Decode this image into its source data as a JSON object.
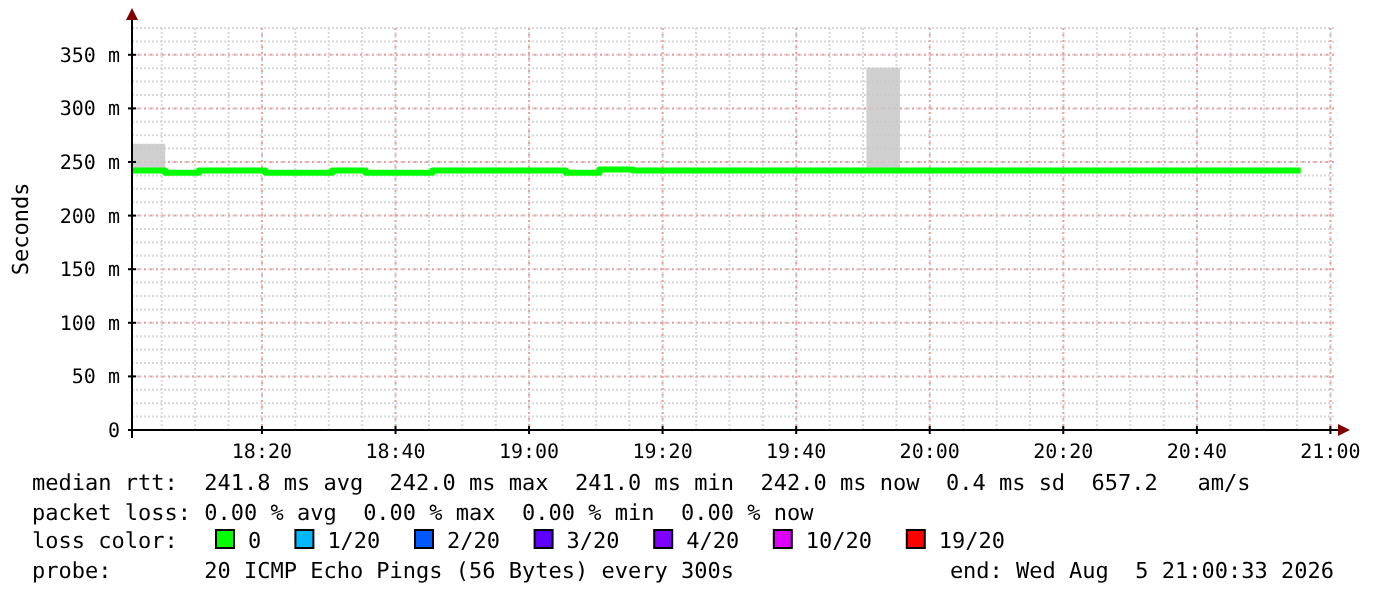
{
  "chart_data": {
    "type": "step",
    "ylabel": "Seconds",
    "legend_title": "loss color:",
    "legend": "bottom",
    "grid": true,
    "xlim": [
      18.009,
      21.009
    ],
    "xticks": [
      {
        "value": 18.3333,
        "label": "18:20"
      },
      {
        "value": 18.6667,
        "label": "18:40"
      },
      {
        "value": 19,
        "label": "19:00"
      },
      {
        "value": 19.3333,
        "label": "19:20"
      },
      {
        "value": 19.6667,
        "label": "19:40"
      },
      {
        "value": 20,
        "label": "20:00"
      },
      {
        "value": 20.3333,
        "label": "20:20"
      },
      {
        "value": 20.6667,
        "label": "20:40"
      },
      {
        "value": 21,
        "label": "21:00"
      }
    ],
    "ylim": [
      0,
      375
    ],
    "yticks": [
      0,
      {
        "value": 50,
        "label": "50 m"
      },
      {
        "value": 100,
        "label": "100 m"
      },
      {
        "value": 150,
        "label": "150 m"
      },
      {
        "value": 200,
        "label": "200 m"
      },
      {
        "value": 250,
        "label": "250 m"
      },
      {
        "value": 300,
        "label": "300 m"
      },
      {
        "value": 350,
        "label": "350 m"
      }
    ],
    "x": [
      18.009,
      18.092,
      18.176,
      18.259,
      18.342,
      18.426,
      18.509,
      18.592,
      18.676,
      18.759,
      18.842,
      18.926,
      19.009,
      19.092,
      19.176,
      19.259,
      19.342,
      19.426,
      19.509,
      19.592,
      19.676,
      19.759,
      19.842,
      19.926,
      20.009,
      20.092,
      20.176,
      20.259,
      20.342,
      20.426,
      20.509,
      20.592,
      20.676,
      20.759,
      20.842,
      20.926
    ],
    "series": [
      {
        "name": "0",
        "color": "#00ff00",
        "values": [
          242,
          240,
          242,
          242,
          240,
          240,
          242,
          240,
          240,
          242,
          242,
          242,
          242,
          240,
          243,
          242,
          242,
          242,
          242,
          242,
          242,
          242,
          242,
          242,
          242,
          242,
          242,
          242,
          242,
          242,
          242,
          242,
          242,
          242,
          242,
          242
        ],
        "lower": [
          242,
          242,
          null,
          null,
          null,
          null,
          null,
          null,
          null,
          null,
          null,
          null,
          null,
          null,
          null,
          null,
          null,
          null,
          null,
          null,
          null,
          null,
          242,
          242,
          null,
          null,
          null,
          null,
          null,
          null,
          null,
          null,
          null,
          null,
          null,
          null
        ],
        "upper": [
          267,
          267,
          null,
          null,
          null,
          null,
          null,
          null,
          null,
          null,
          null,
          null,
          null,
          null,
          null,
          null,
          null,
          null,
          null,
          null,
          null,
          null,
          338,
          338,
          null,
          null,
          null,
          null,
          null,
          null,
          null,
          null,
          null,
          null,
          null,
          null
        ]
      },
      {
        "name": "1/20",
        "color": "#00b8ff",
        "values": [
          null,
          null,
          null,
          null,
          null,
          null,
          null,
          null,
          null,
          null,
          null,
          null,
          null,
          null,
          null,
          null,
          null,
          null,
          null,
          null,
          null,
          null,
          null,
          null,
          null,
          null,
          null,
          null,
          null,
          null,
          null,
          null,
          null,
          null,
          null,
          null
        ]
      },
      {
        "name": "2/20",
        "color": "#0059ff",
        "values": [
          null,
          null,
          null,
          null,
          null,
          null,
          null,
          null,
          null,
          null,
          null,
          null,
          null,
          null,
          null,
          null,
          null,
          null,
          null,
          null,
          null,
          null,
          null,
          null,
          null,
          null,
          null,
          null,
          null,
          null,
          null,
          null,
          null,
          null,
          null,
          null
        ]
      },
      {
        "name": "3/20",
        "color": "#5e00ff",
        "values": [
          null,
          null,
          null,
          null,
          null,
          null,
          null,
          null,
          null,
          null,
          null,
          null,
          null,
          null,
          null,
          null,
          null,
          null,
          null,
          null,
          null,
          null,
          null,
          null,
          null,
          null,
          null,
          null,
          null,
          null,
          null,
          null,
          null,
          null,
          null,
          null
        ]
      },
      {
        "name": "4/20",
        "color": "#7e00ff",
        "values": [
          null,
          null,
          null,
          null,
          null,
          null,
          null,
          null,
          null,
          null,
          null,
          null,
          null,
          null,
          null,
          null,
          null,
          null,
          null,
          null,
          null,
          null,
          null,
          null,
          null,
          null,
          null,
          null,
          null,
          null,
          null,
          null,
          null,
          null,
          null,
          null
        ]
      },
      {
        "name": "10/20",
        "color": "#dd00ff",
        "values": [
          null,
          null,
          null,
          null,
          null,
          null,
          null,
          null,
          null,
          null,
          null,
          null,
          null,
          null,
          null,
          null,
          null,
          null,
          null,
          null,
          null,
          null,
          null,
          null,
          null,
          null,
          null,
          null,
          null,
          null,
          null,
          null,
          null,
          null,
          null,
          null
        ]
      },
      {
        "name": "19/20",
        "color": "#ff0000",
        "values": [
          null,
          null,
          null,
          null,
          null,
          null,
          null,
          null,
          null,
          null,
          null,
          null,
          null,
          null,
          null,
          null,
          null,
          null,
          null,
          null,
          null,
          null,
          null,
          null,
          null,
          null,
          null,
          null,
          null,
          null,
          null,
          null,
          null,
          null,
          null,
          null
        ]
      }
    ],
    "annotations": [
      "median rtt:  241.8 ms avg  242.0 ms max  241.0 ms min  242.0 ms now  0.4 ms sd  657.2   am/s",
      "packet loss: 0.00 % avg  0.00 % max  0.00 % min  0.00 % now",
      "probe:       20 ICMP Echo Pings (56 Bytes) every 300s",
      "end: Wed Aug  5 21:00:33 2026"
    ]
  }
}
